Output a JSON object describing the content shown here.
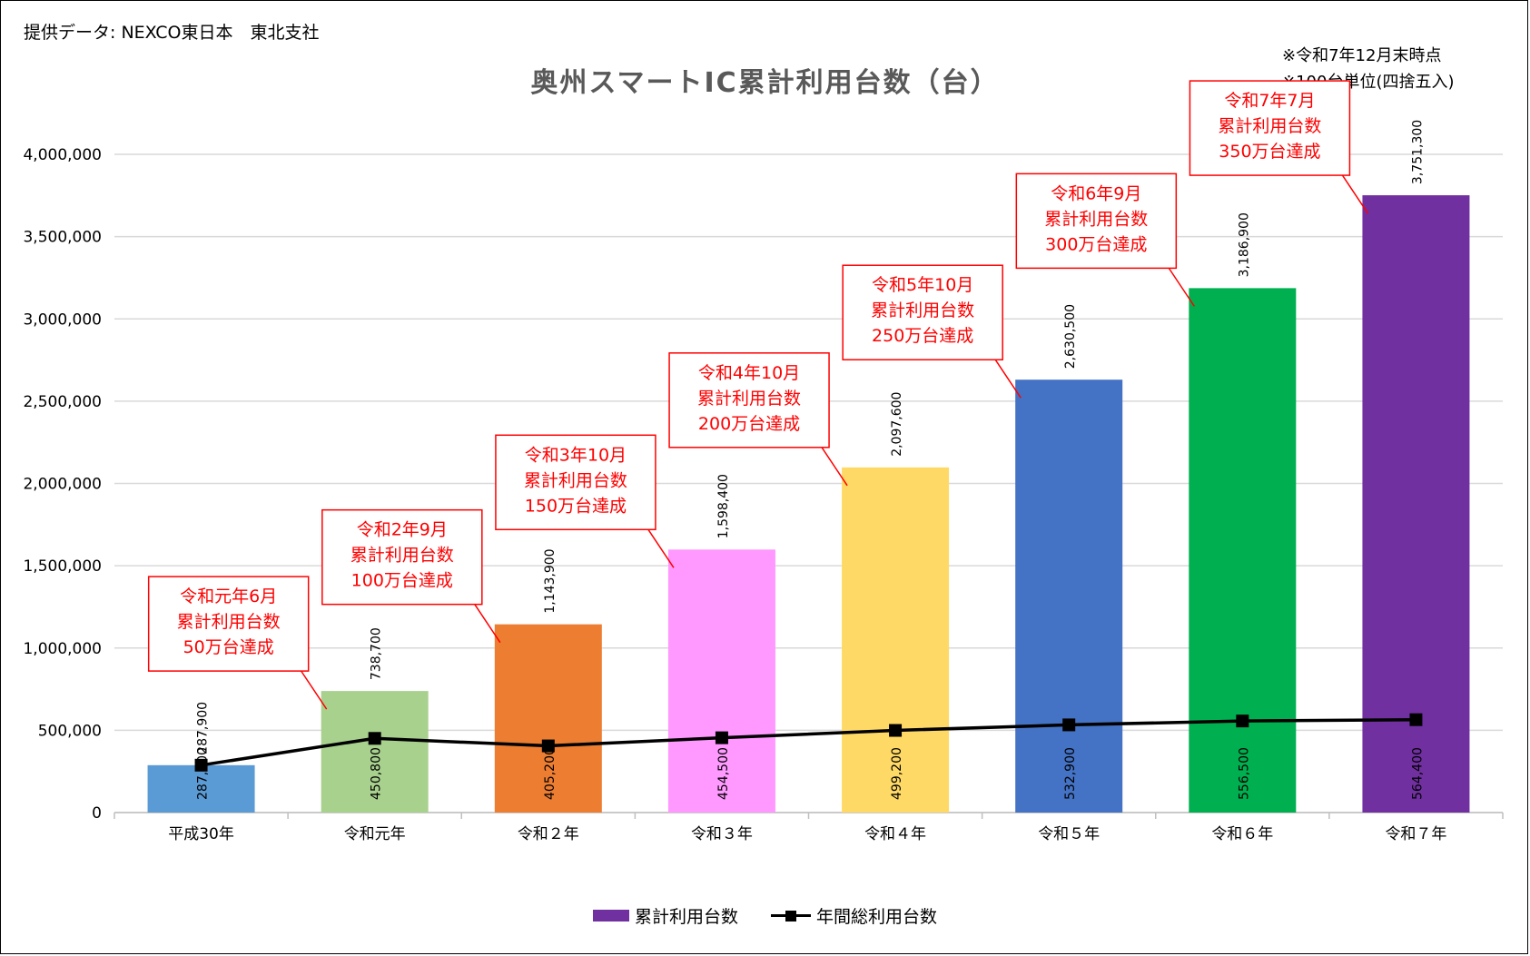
{
  "header": {
    "source": "提供データ: NEXCO東日本　東北支社",
    "title": "奥州スマートIC累計利用台数（台）",
    "note1": "※令和7年12月末時点",
    "note2": "※100台単位(四捨五入)"
  },
  "chart_data": {
    "type": "bar",
    "categories": [
      "平成30年",
      "令和元年",
      "令和２年",
      "令和３年",
      "令和４年",
      "令和５年",
      "令和６年",
      "令和７年"
    ],
    "series": [
      {
        "name": "累計利用台数",
        "type": "bar",
        "values": [
          287900,
          738700,
          1143900,
          1598400,
          2097600,
          2630500,
          3186900,
          3751300
        ],
        "labels": [
          "287,900",
          "738,700",
          "1,143,900",
          "1,598,400",
          "2,097,600",
          "2,630,500",
          "3,186,900",
          "3,751,300"
        ],
        "colors": [
          "#5b9bd5",
          "#a9d18e",
          "#ed7d31",
          "#ff99ff",
          "#ffd966",
          "#4472c4",
          "#00b050",
          "#7030a0"
        ]
      },
      {
        "name": "年間総利用台数",
        "type": "line",
        "values": [
          287900,
          450800,
          405200,
          454500,
          499200,
          532900,
          556500,
          564400
        ],
        "labels": [
          "287,900",
          "450,800",
          "405,200",
          "454,500",
          "499,200",
          "532,900",
          "556,500",
          "564,400"
        ],
        "color": "#000000"
      }
    ],
    "ylim": [
      0,
      4000000
    ],
    "yticks": [
      {
        "value": 0,
        "label": "0"
      },
      {
        "value": 500000,
        "label": "500,000"
      },
      {
        "value": 1000000,
        "label": "1,000,000"
      },
      {
        "value": 1500000,
        "label": "1,500,000"
      },
      {
        "value": 2000000,
        "label": "2,000,000"
      },
      {
        "value": 2500000,
        "label": "2,500,000"
      },
      {
        "value": 3000000,
        "label": "3,000,000"
      },
      {
        "value": 3500000,
        "label": "3,500,000"
      },
      {
        "value": 4000000,
        "label": "4,000,000"
      }
    ],
    "grid": true,
    "legend_position": "bottom",
    "annotations": [
      {
        "target_index": 1,
        "lines": [
          "令和元年6月",
          "累計利用台数",
          "50万台達成"
        ]
      },
      {
        "target_index": 2,
        "lines": [
          "令和2年9月",
          "累計利用台数",
          "100万台達成"
        ]
      },
      {
        "target_index": 3,
        "lines": [
          "令和3年10月",
          "累計利用台数",
          "150万台達成"
        ]
      },
      {
        "target_index": 4,
        "lines": [
          "令和4年10月",
          "累計利用台数",
          "200万台達成"
        ]
      },
      {
        "target_index": 5,
        "lines": [
          "令和5年10月",
          "累計利用台数",
          "250万台達成"
        ]
      },
      {
        "target_index": 6,
        "lines": [
          "令和6年9月",
          "累計利用台数",
          "300万台達成"
        ]
      },
      {
        "target_index": 7,
        "lines": [
          "令和7年7月",
          "累計利用台数",
          "350万台達成"
        ]
      }
    ],
    "annotation_color": "#ff0000"
  }
}
